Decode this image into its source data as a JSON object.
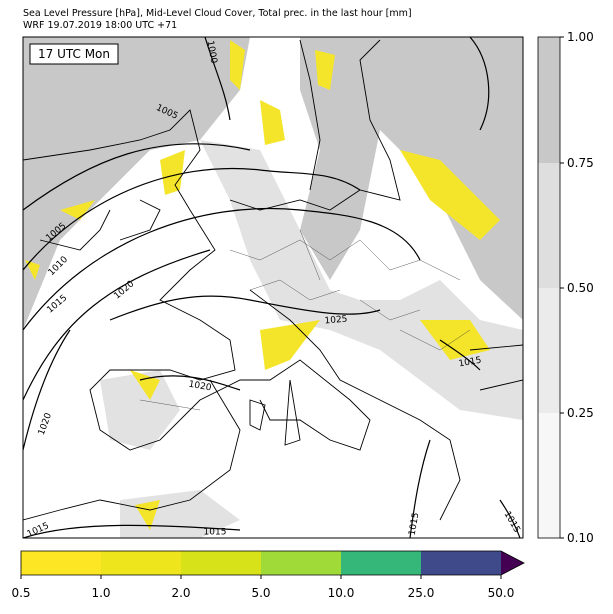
{
  "header": {
    "title": "Sea Level Pressure [hPa], Mid-Level Cloud Cover, Total prec. in the last hour [mm]",
    "subtitle": "WRF 19.07.2019 18:00 UTC +71"
  },
  "map": {
    "time_label": "17 UTC Mon",
    "isobar_labels": [
      "1000",
      "1005",
      "1005",
      "1010",
      "1015",
      "1020",
      "1025",
      "1020",
      "1020",
      "1015",
      "1015",
      "1015",
      "1015",
      "1015"
    ]
  },
  "cloud_colorbar": {
    "tick_labels": [
      "1.00",
      "0.75",
      "0.50",
      "0.25",
      "0.10"
    ]
  },
  "precip_colorbar": {
    "tick_labels": [
      "0.5",
      "1.0",
      "2.0",
      "5.0",
      "10.0",
      "25.0",
      "50.0"
    ]
  }
}
